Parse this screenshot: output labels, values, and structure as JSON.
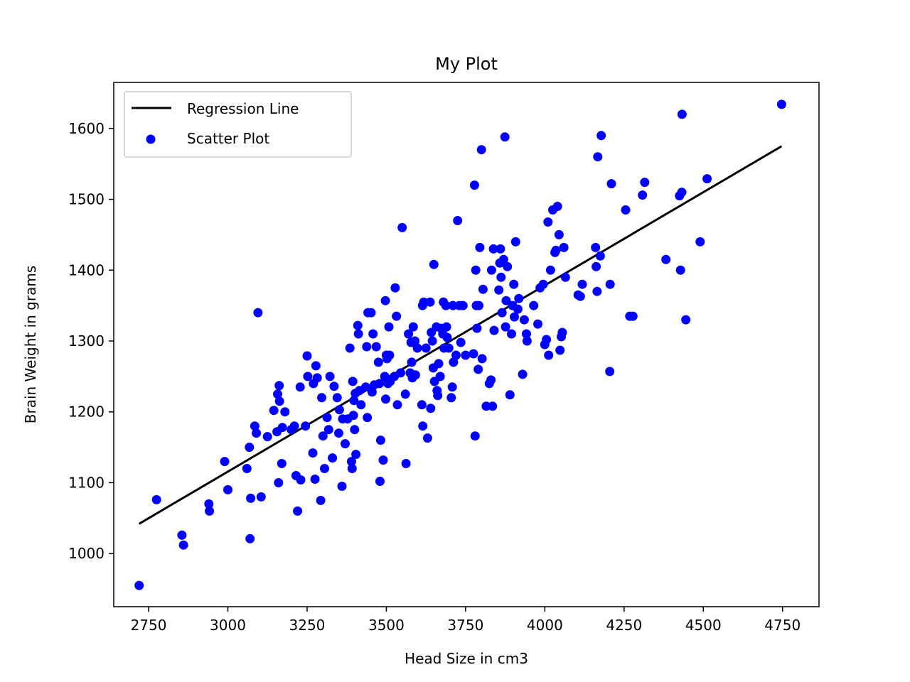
{
  "chart_data": {
    "type": "scatter",
    "title": "My Plot",
    "xlabel": "Head Size in cm3",
    "ylabel": "Brain Weight in grams",
    "xlim": [
      2640,
      4865
    ],
    "ylim": [
      925,
      1665
    ],
    "xticks": [
      2750,
      3000,
      3250,
      3500,
      3750,
      4000,
      4250,
      4500,
      4750
    ],
    "yticks": [
      1000,
      1100,
      1200,
      1300,
      1400,
      1500,
      1600
    ],
    "grid": false,
    "legend_position": "top-left",
    "colors": {
      "scatter": "#0000ff",
      "line": "#000000"
    },
    "series": [
      {
        "name": "Regression Line",
        "kind": "line",
        "points": [
          [
            2720,
            1042
          ],
          [
            4747,
            1575
          ]
        ]
      },
      {
        "name": "Scatter Plot",
        "kind": "scatter",
        "points": [
          [
            2720,
            955
          ],
          [
            2775,
            1076
          ],
          [
            2855,
            1026
          ],
          [
            2860,
            1012
          ],
          [
            2940,
            1070
          ],
          [
            2942,
            1060
          ],
          [
            2990,
            1130
          ],
          [
            3000,
            1090
          ],
          [
            3060,
            1120
          ],
          [
            3068,
            1150
          ],
          [
            3070,
            1021
          ],
          [
            3072,
            1078
          ],
          [
            3085,
            1180
          ],
          [
            3090,
            1170
          ],
          [
            3095,
            1340
          ],
          [
            3105,
            1080
          ],
          [
            3125,
            1165
          ],
          [
            3145,
            1202
          ],
          [
            3155,
            1172
          ],
          [
            3157,
            1225
          ],
          [
            3160,
            1100
          ],
          [
            3162,
            1237
          ],
          [
            3163,
            1215
          ],
          [
            3170,
            1127
          ],
          [
            3172,
            1178
          ],
          [
            3180,
            1200
          ],
          [
            3200,
            1175
          ],
          [
            3210,
            1180
          ],
          [
            3215,
            1110
          ],
          [
            3220,
            1060
          ],
          [
            3228,
            1235
          ],
          [
            3230,
            1104
          ],
          [
            3245,
            1180
          ],
          [
            3250,
            1279
          ],
          [
            3252,
            1250
          ],
          [
            3268,
            1142
          ],
          [
            3270,
            1240
          ],
          [
            3275,
            1105
          ],
          [
            3278,
            1265
          ],
          [
            3282,
            1248
          ],
          [
            3293,
            1075
          ],
          [
            3296,
            1220
          ],
          [
            3300,
            1166
          ],
          [
            3305,
            1120
          ],
          [
            3313,
            1192
          ],
          [
            3318,
            1175
          ],
          [
            3322,
            1250
          ],
          [
            3330,
            1135
          ],
          [
            3335,
            1236
          ],
          [
            3345,
            1220
          ],
          [
            3350,
            1170
          ],
          [
            3352,
            1203
          ],
          [
            3360,
            1095
          ],
          [
            3362,
            1190
          ],
          [
            3370,
            1155
          ],
          [
            3378,
            1190
          ],
          [
            3385,
            1290
          ],
          [
            3390,
            1130
          ],
          [
            3392,
            1120
          ],
          [
            3394,
            1243
          ],
          [
            3396,
            1195
          ],
          [
            3398,
            1216
          ],
          [
            3400,
            1175
          ],
          [
            3402,
            1226
          ],
          [
            3404,
            1140
          ],
          [
            3410,
            1322
          ],
          [
            3412,
            1310
          ],
          [
            3415,
            1230
          ],
          [
            3420,
            1210
          ],
          [
            3435,
            1235
          ],
          [
            3438,
            1292
          ],
          [
            3440,
            1192
          ],
          [
            3442,
            1340
          ],
          [
            3452,
            1340
          ],
          [
            3455,
            1228
          ],
          [
            3458,
            1310
          ],
          [
            3462,
            1238
          ],
          [
            3468,
            1292
          ],
          [
            3475,
            1270
          ],
          [
            3478,
            1240
          ],
          [
            3480,
            1102
          ],
          [
            3482,
            1160
          ],
          [
            3490,
            1132
          ],
          [
            3495,
            1250
          ],
          [
            3497,
            1357
          ],
          [
            3498,
            1218
          ],
          [
            3500,
            1280
          ],
          [
            3502,
            1275
          ],
          [
            3505,
            1240
          ],
          [
            3508,
            1320
          ],
          [
            3510,
            1280
          ],
          [
            3512,
            1243
          ],
          [
            3525,
            1250
          ],
          [
            3528,
            1375
          ],
          [
            3532,
            1335
          ],
          [
            3535,
            1210
          ],
          [
            3545,
            1255
          ],
          [
            3550,
            1460
          ],
          [
            3560,
            1225
          ],
          [
            3562,
            1127
          ],
          [
            3570,
            1310
          ],
          [
            3575,
            1255
          ],
          [
            3578,
            1298
          ],
          [
            3580,
            1270
          ],
          [
            3582,
            1248
          ],
          [
            3585,
            1320
          ],
          [
            3590,
            1300
          ],
          [
            3592,
            1252
          ],
          [
            3598,
            1290
          ],
          [
            3612,
            1210
          ],
          [
            3614,
            1350
          ],
          [
            3615,
            1180
          ],
          [
            3618,
            1355
          ],
          [
            3625,
            1290
          ],
          [
            3630,
            1163
          ],
          [
            3638,
            1355
          ],
          [
            3640,
            1205
          ],
          [
            3642,
            1312
          ],
          [
            3645,
            1300
          ],
          [
            3648,
            1262
          ],
          [
            3650,
            1408
          ],
          [
            3652,
            1243
          ],
          [
            3658,
            1320
          ],
          [
            3660,
            1230
          ],
          [
            3662,
            1223
          ],
          [
            3665,
            1268
          ],
          [
            3670,
            1250
          ],
          [
            3673,
            1318
          ],
          [
            3678,
            1310
          ],
          [
            3680,
            1355
          ],
          [
            3682,
            1290
          ],
          [
            3688,
            1350
          ],
          [
            3690,
            1320
          ],
          [
            3692,
            1305
          ],
          [
            3697,
            1290
          ],
          [
            3705,
            1220
          ],
          [
            3708,
            1235
          ],
          [
            3710,
            1350
          ],
          [
            3712,
            1270
          ],
          [
            3720,
            1280
          ],
          [
            3725,
            1470
          ],
          [
            3730,
            1350
          ],
          [
            3735,
            1298
          ],
          [
            3742,
            1350
          ],
          [
            3750,
            1280
          ],
          [
            3775,
            1282
          ],
          [
            3778,
            1520
          ],
          [
            3780,
            1166
          ],
          [
            3782,
            1400
          ],
          [
            3784,
            1350
          ],
          [
            3786,
            1318
          ],
          [
            3790,
            1260
          ],
          [
            3792,
            1350
          ],
          [
            3795,
            1432
          ],
          [
            3800,
            1570
          ],
          [
            3802,
            1275
          ],
          [
            3805,
            1373
          ],
          [
            3815,
            1208
          ],
          [
            3825,
            1240
          ],
          [
            3830,
            1245
          ],
          [
            3832,
            1400
          ],
          [
            3835,
            1208
          ],
          [
            3838,
            1430
          ],
          [
            3840,
            1315
          ],
          [
            3855,
            1372
          ],
          [
            3858,
            1410
          ],
          [
            3860,
            1430
          ],
          [
            3862,
            1390
          ],
          [
            3865,
            1340
          ],
          [
            3870,
            1415
          ],
          [
            3874,
            1588
          ],
          [
            3876,
            1320
          ],
          [
            3878,
            1357
          ],
          [
            3882,
            1405
          ],
          [
            3890,
            1224
          ],
          [
            3895,
            1310
          ],
          [
            3898,
            1350
          ],
          [
            3902,
            1380
          ],
          [
            3904,
            1334
          ],
          [
            3908,
            1440
          ],
          [
            3915,
            1345
          ],
          [
            3918,
            1360
          ],
          [
            3930,
            1253
          ],
          [
            3935,
            1330
          ],
          [
            3942,
            1310
          ],
          [
            3944,
            1300
          ],
          [
            3965,
            1350
          ],
          [
            3978,
            1324
          ],
          [
            3985,
            1375
          ],
          [
            3995,
            1380
          ],
          [
            4000,
            1295
          ],
          [
            4005,
            1302
          ],
          [
            4010,
            1468
          ],
          [
            4012,
            1280
          ],
          [
            4018,
            1400
          ],
          [
            4025,
            1485
          ],
          [
            4032,
            1425
          ],
          [
            4035,
            1428
          ],
          [
            4040,
            1490
          ],
          [
            4045,
            1450
          ],
          [
            4048,
            1287
          ],
          [
            4052,
            1306
          ],
          [
            4055,
            1312
          ],
          [
            4060,
            1432
          ],
          [
            4065,
            1390
          ],
          [
            4105,
            1365
          ],
          [
            4112,
            1363
          ],
          [
            4118,
            1380
          ],
          [
            4160,
            1432
          ],
          [
            4162,
            1405
          ],
          [
            4165,
            1370
          ],
          [
            4167,
            1560
          ],
          [
            4175,
            1420
          ],
          [
            4178,
            1590
          ],
          [
            4205,
            1257
          ],
          [
            4206,
            1380
          ],
          [
            4210,
            1522
          ],
          [
            4255,
            1485
          ],
          [
            4268,
            1335
          ],
          [
            4278,
            1335
          ],
          [
            4308,
            1506
          ],
          [
            4315,
            1524
          ],
          [
            4382,
            1415
          ],
          [
            4425,
            1505
          ],
          [
            4428,
            1400
          ],
          [
            4432,
            1510
          ],
          [
            4433,
            1620
          ],
          [
            4445,
            1330
          ],
          [
            4490,
            1440
          ],
          [
            4512,
            1529
          ],
          [
            4747,
            1634
          ]
        ]
      }
    ]
  }
}
